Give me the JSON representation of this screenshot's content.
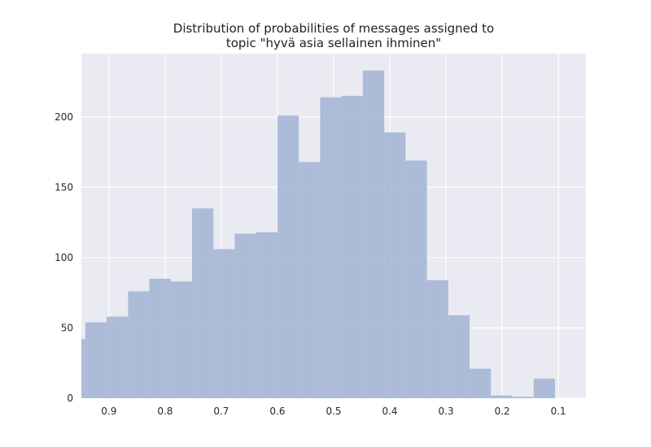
{
  "chart_data": {
    "type": "bar",
    "title_lines": [
      "Distribution of probabilities of messages assigned to",
      "topic \"hyvä asia sellainen ihminen\""
    ],
    "xlabel": "",
    "ylabel": "",
    "x_axis_inverted": true,
    "xlim": [
      0.949,
      0.051
    ],
    "ylim": [
      0,
      245
    ],
    "x_ticks": [
      0.9,
      0.8,
      0.7,
      0.6,
      0.5,
      0.4,
      0.3,
      0.2,
      0.1
    ],
    "x_tick_labels": [
      "0.9",
      "0.8",
      "0.7",
      "0.6",
      "0.5",
      "0.4",
      "0.3",
      "0.2",
      "0.1"
    ],
    "y_ticks": [
      0,
      50,
      100,
      150,
      200
    ],
    "y_tick_labels": [
      "0",
      "50",
      "100",
      "150",
      "200"
    ],
    "grid": true,
    "bin_edges": [
      0.95,
      0.942,
      0.904,
      0.866,
      0.828,
      0.79,
      0.752,
      0.714,
      0.676,
      0.638,
      0.6,
      0.562,
      0.524,
      0.486,
      0.448,
      0.41,
      0.372,
      0.334,
      0.296,
      0.258,
      0.22,
      0.182,
      0.144,
      0.106
    ],
    "values": [
      42,
      54,
      58,
      76,
      85,
      83,
      135,
      106,
      117,
      118,
      201,
      168,
      214,
      215,
      233,
      189,
      169,
      84,
      59,
      21,
      2,
      1,
      14
    ],
    "colors": {
      "bar": "#a9b9d6",
      "plot_background": "#eaeaf2",
      "grid": "#ffffff"
    }
  }
}
